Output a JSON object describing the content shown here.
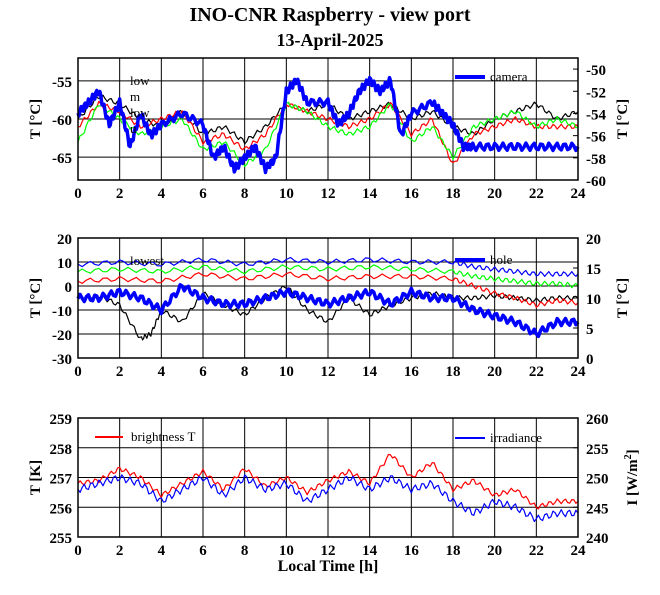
{
  "header": {
    "title": "INO-CNR Raspberry - view port",
    "date": "13-April-2025"
  },
  "colors": {
    "black": "#000000",
    "red": "#ff0000",
    "green": "#00ff00",
    "blue": "#0000ff",
    "grid": "#000000"
  },
  "chart_data": [
    {
      "type": "line",
      "panel": "top",
      "x_ticks": [
        "0",
        "2",
        "4",
        "6",
        "8",
        "10",
        "12",
        "14",
        "16",
        "18",
        "20",
        "22",
        "24"
      ],
      "xlim": [
        0,
        24
      ],
      "ylabel_left": "T [°C]",
      "ylim_left": [
        -68,
        -52
      ],
      "yticks_left": [
        "-55",
        "-60",
        "-65"
      ],
      "ylabel_right": "T [°C]",
      "ylim_right": [
        -60,
        -49
      ],
      "yticks_right": [
        "-50",
        "-52",
        "-54",
        "-56",
        "-58",
        "-60"
      ],
      "legend_left": [
        "low",
        "m",
        "low",
        "u"
      ],
      "legend_right": [
        "camera"
      ],
      "series": [
        {
          "name": "low",
          "color": "#000000",
          "axis": "left",
          "x": [
            0,
            1,
            2,
            3,
            4,
            5,
            6,
            7,
            8,
            9,
            10,
            11,
            12,
            13,
            14,
            15,
            16,
            17,
            18,
            19,
            20,
            21,
            22,
            23,
            24
          ],
          "y": [
            -60,
            -57,
            -58,
            -60,
            -61,
            -59,
            -62,
            -61,
            -63,
            -61,
            -58,
            -59,
            -58,
            -60,
            -59,
            -58,
            -60,
            -59,
            -61,
            -62,
            -60,
            -59,
            -58,
            -60,
            -59
          ]
        },
        {
          "name": "u",
          "color": "#ff0000",
          "axis": "left",
          "x": [
            0,
            1,
            2,
            3,
            4,
            5,
            6,
            7,
            8,
            9,
            10,
            11,
            12,
            13,
            14,
            15,
            16,
            17,
            18,
            19,
            20,
            21,
            22,
            23,
            24
          ],
          "y": [
            -61,
            -58,
            -59,
            -61,
            -60,
            -59,
            -63,
            -62,
            -64,
            -62,
            -58,
            -59,
            -60,
            -61,
            -60,
            -58,
            -62,
            -60,
            -66,
            -62,
            -61,
            -60,
            -61,
            -61,
            -61
          ]
        },
        {
          "name": "m",
          "color": "#00ff00",
          "axis": "left",
          "x": [
            0,
            1,
            2,
            3,
            4,
            5,
            6,
            7,
            8,
            9,
            10,
            11,
            12,
            13,
            14,
            15,
            16,
            17,
            18,
            19,
            20,
            21,
            22,
            23,
            24
          ],
          "y": [
            -63,
            -58,
            -60,
            -62,
            -61,
            -60,
            -64,
            -63,
            -66,
            -64,
            -58,
            -59,
            -61,
            -62,
            -61,
            -58,
            -63,
            -61,
            -65,
            -61,
            -60,
            -59,
            -61,
            -60,
            -61
          ]
        },
        {
          "name": "camera",
          "color": "#0000ff",
          "axis": "right",
          "x": [
            0,
            0.5,
            1,
            1.5,
            2,
            2.5,
            3,
            3.5,
            4,
            5,
            6,
            6.5,
            7,
            7.5,
            8,
            8.5,
            9,
            9.5,
            10,
            10.5,
            11,
            12,
            12.5,
            13,
            13.5,
            14,
            14.5,
            15,
            15.5,
            16,
            17,
            17.5,
            18,
            18.5,
            19,
            20,
            21,
            22,
            23,
            24
          ],
          "y": [
            -54,
            -53,
            -52,
            -55,
            -53,
            -57,
            -54,
            -56,
            -55,
            -54,
            -55,
            -58,
            -57,
            -59,
            -58,
            -57,
            -59,
            -58,
            -52,
            -51,
            -53,
            -53,
            -55,
            -54,
            -52,
            -51,
            -52,
            -51,
            -56,
            -54,
            -53,
            -54,
            -55,
            -57,
            -57,
            -57,
            -57,
            -57,
            -57,
            -57
          ]
        }
      ]
    },
    {
      "type": "line",
      "panel": "middle",
      "x_ticks": [
        "0",
        "2",
        "4",
        "6",
        "8",
        "10",
        "12",
        "14",
        "16",
        "18",
        "20",
        "22",
        "24"
      ],
      "xlim": [
        0,
        24
      ],
      "ylabel_left": "T [°C]",
      "ylim_left": [
        -30,
        20
      ],
      "yticks_left": [
        "20",
        "10",
        "0",
        "-10",
        "-20",
        "-30"
      ],
      "ylabel_right": "T [°C]",
      "ylim_right": [
        0,
        20
      ],
      "yticks_right": [
        "20",
        "15",
        "10",
        "5",
        "0"
      ],
      "legend_left": [
        "lowest"
      ],
      "legend_right": [
        "hole"
      ],
      "series": [
        {
          "name": "lowest",
          "color": "#000000",
          "axis": "left",
          "x": [
            0,
            1,
            2,
            3,
            3.5,
            4,
            5,
            6,
            7,
            8,
            9,
            10,
            11,
            12,
            13,
            14,
            15,
            16,
            17,
            18,
            19,
            20,
            21,
            22,
            23,
            24
          ],
          "y": [
            -5,
            -4,
            -8,
            -22,
            -20,
            -10,
            -15,
            -3,
            -8,
            -12,
            -5,
            0,
            -10,
            -15,
            -5,
            -12,
            -8,
            -5,
            -3,
            -5,
            -5,
            -4,
            -5,
            -6,
            -5,
            -5
          ]
        },
        {
          "name": "",
          "color": "#ff0000",
          "axis": "left",
          "x": [
            0,
            2,
            4,
            6,
            8,
            10,
            12,
            14,
            16,
            18,
            19,
            20,
            21,
            22,
            23,
            24
          ],
          "y": [
            2,
            3,
            2,
            5,
            3,
            5,
            3,
            4,
            4,
            3,
            0,
            -3,
            -5,
            -8,
            -6,
            -7
          ]
        },
        {
          "name": "",
          "color": "#00ff00",
          "axis": "left",
          "x": [
            0,
            2,
            4,
            6,
            8,
            10,
            12,
            14,
            16,
            18,
            19,
            20,
            21,
            22,
            23,
            24
          ],
          "y": [
            6,
            7,
            6,
            8,
            6,
            8,
            7,
            8,
            7,
            6,
            4,
            3,
            2,
            1,
            1,
            0
          ]
        },
        {
          "name": "",
          "color": "#0000ff",
          "axis": "left",
          "x": [
            0,
            2,
            4,
            6,
            8,
            10,
            12,
            14,
            16,
            18,
            19,
            20,
            21,
            22,
            23,
            24
          ],
          "y": [
            9,
            10,
            9,
            11,
            9,
            11,
            10,
            11,
            10,
            10,
            8,
            7,
            6,
            5,
            5,
            5
          ]
        },
        {
          "name": "hole",
          "color": "#0000ff",
          "axis": "right",
          "x": [
            0,
            1,
            2,
            3,
            4,
            5,
            6,
            7,
            8,
            9,
            10,
            11,
            12,
            13,
            14,
            15,
            16,
            17,
            18,
            19,
            20,
            21,
            22,
            23,
            24
          ],
          "y": [
            10,
            10,
            11,
            10,
            8,
            12,
            10,
            9,
            9,
            10,
            11,
            10,
            9,
            10,
            11,
            9,
            11,
            10,
            10,
            8,
            7,
            6,
            4,
            6,
            6
          ]
        }
      ]
    },
    {
      "type": "line",
      "panel": "bottom",
      "x_ticks": [
        "0",
        "2",
        "4",
        "6",
        "8",
        "10",
        "12",
        "14",
        "16",
        "18",
        "20",
        "22",
        "24"
      ],
      "xlim": [
        0,
        24
      ],
      "xlabel": "Local Time [h]",
      "ylabel_left": "T [K]",
      "ylim_left": [
        255,
        259
      ],
      "yticks_left": [
        "259",
        "258",
        "257",
        "256",
        "255"
      ],
      "ylabel_right": "I [W/m2]",
      "ylim_right": [
        240,
        260
      ],
      "yticks_right": [
        "260",
        "255",
        "250",
        "245",
        "240"
      ],
      "legend_left": [
        "brightness T"
      ],
      "legend_right": [
        "irradiance"
      ],
      "series": [
        {
          "name": "brightness T",
          "color": "#ff0000",
          "axis": "left",
          "x": [
            0,
            1,
            2,
            3,
            4,
            5,
            6,
            7,
            8,
            9,
            10,
            11,
            12,
            13,
            14,
            15,
            16,
            17,
            18,
            19,
            20,
            21,
            22,
            23,
            24
          ],
          "y": [
            256.8,
            256.9,
            257.3,
            257.0,
            256.4,
            256.8,
            257.2,
            256.6,
            257.3,
            256.7,
            257.0,
            256.5,
            256.9,
            257.2,
            256.8,
            257.8,
            257.0,
            257.5,
            256.6,
            256.9,
            256.4,
            256.6,
            256.0,
            256.2,
            256.2
          ]
        },
        {
          "name": "irradiance",
          "color": "#0000ff",
          "axis": "right",
          "x": [
            0,
            1,
            2,
            3,
            4,
            5,
            6,
            7,
            8,
            9,
            10,
            11,
            12,
            13,
            14,
            15,
            16,
            17,
            18,
            19,
            20,
            21,
            22,
            23,
            24
          ],
          "y": [
            248,
            249,
            250,
            249,
            246,
            248,
            250,
            247,
            250,
            248,
            249,
            246,
            248,
            250,
            248,
            250,
            248,
            249,
            246,
            244,
            246,
            245,
            243,
            244,
            244
          ]
        }
      ]
    }
  ]
}
